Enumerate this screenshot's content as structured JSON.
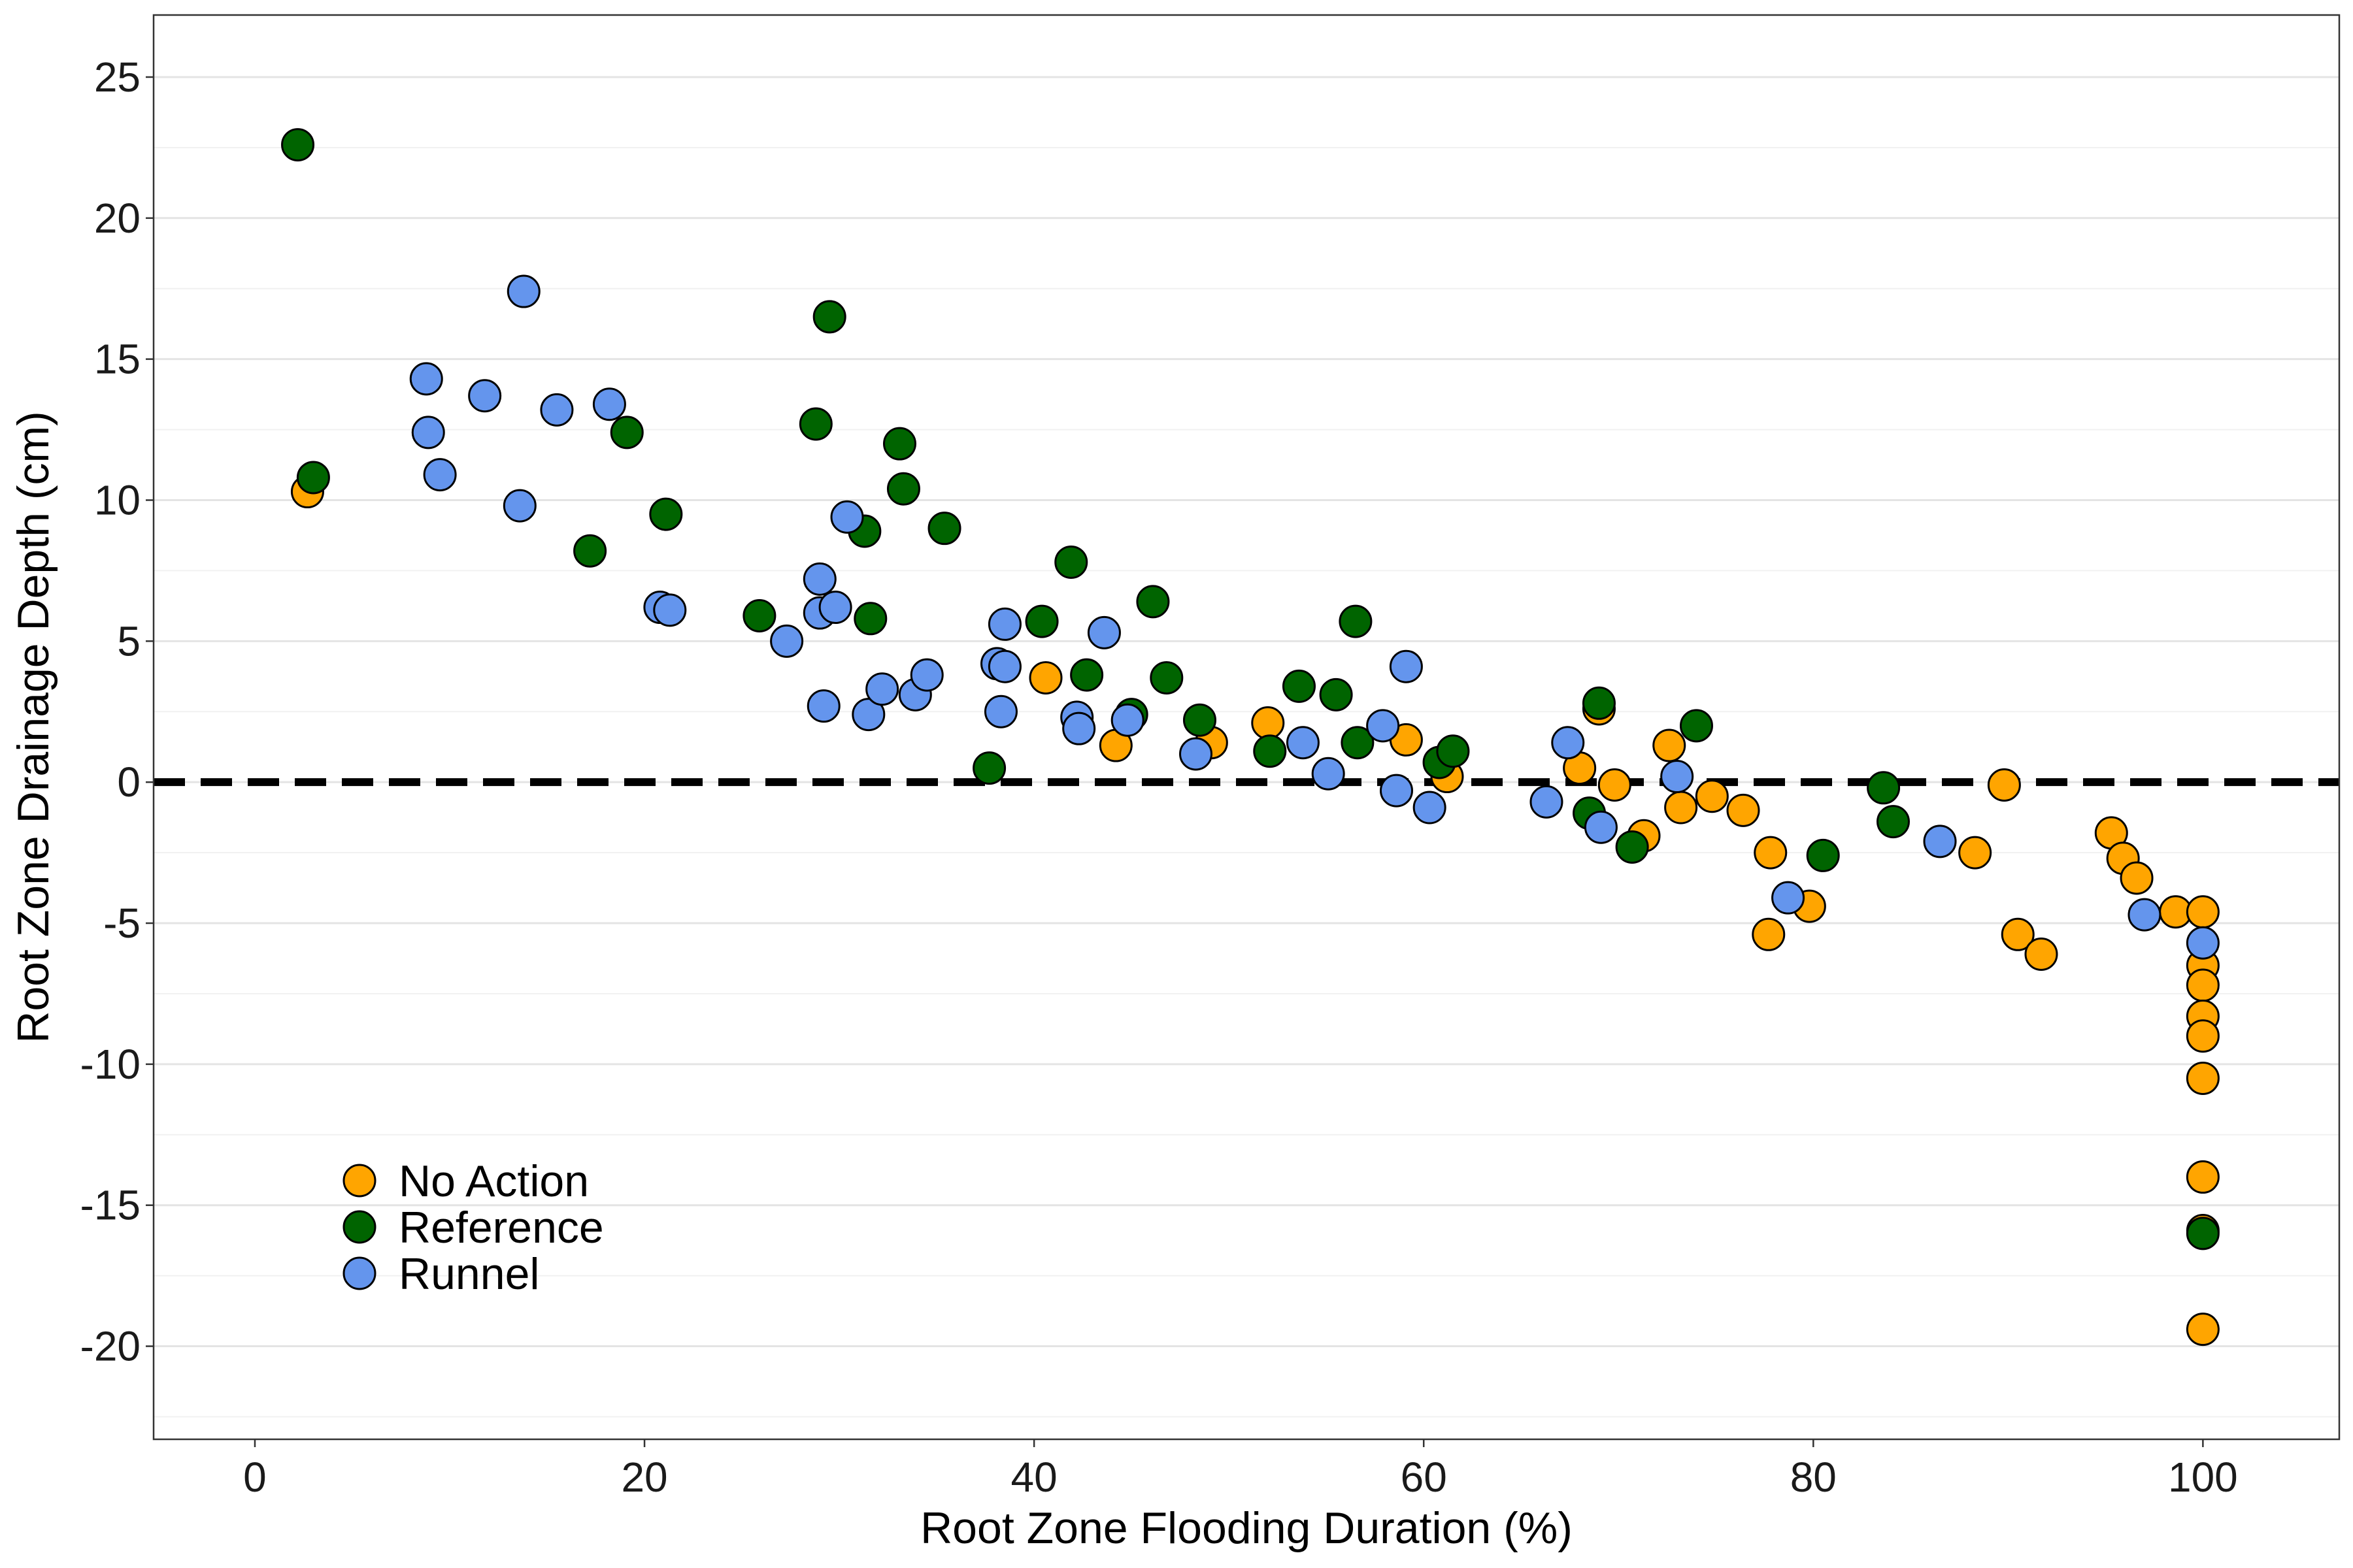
{
  "chart_data": {
    "type": "scatter",
    "xlabel": "Root Zone Flooding Duration (%)",
    "ylabel": "Root Zone Drainage Depth (cm)",
    "xlim": [
      -5.2,
      107
    ],
    "ylim": [
      -23.3,
      27.2
    ],
    "xticks": [
      0,
      20,
      40,
      60,
      80,
      100
    ],
    "yticks": [
      25,
      20,
      15,
      10,
      5,
      0,
      -5,
      -10,
      -15,
      -20
    ],
    "xtick_labels": [
      "0",
      "20",
      "40",
      "60",
      "80",
      "100"
    ],
    "ytick_labels": [
      "25",
      "20",
      "15",
      "10",
      "5",
      "0",
      "-5",
      "-10",
      "-15",
      "-20"
    ],
    "grid": "horizontal major and minor",
    "reference_line": {
      "y": 0,
      "style": "dashed"
    },
    "legend_position": "bottom-left",
    "series": [
      {
        "name": "No Action",
        "color": "#FFA500",
        "points": [
          [
            2.7,
            10.3
          ],
          [
            40.6,
            3.7
          ],
          [
            44.2,
            1.3
          ],
          [
            49.1,
            1.4
          ],
          [
            52.0,
            2.1
          ],
          [
            59.1,
            1.5
          ],
          [
            61.2,
            0.2
          ],
          [
            68.0,
            0.5
          ],
          [
            69.0,
            2.6
          ],
          [
            69.8,
            -0.1
          ],
          [
            71.3,
            -1.9
          ],
          [
            72.6,
            1.3
          ],
          [
            73.2,
            -0.9
          ],
          [
            74.8,
            -0.5
          ],
          [
            76.4,
            -1.0
          ],
          [
            77.8,
            -2.5
          ],
          [
            77.7,
            -5.4
          ],
          [
            79.8,
            -4.4
          ],
          [
            88.3,
            -2.5
          ],
          [
            89.8,
            -0.1
          ],
          [
            90.5,
            -5.4
          ],
          [
            91.7,
            -6.1
          ],
          [
            95.3,
            -1.8
          ],
          [
            95.9,
            -2.7
          ],
          [
            96.6,
            -3.4
          ],
          [
            98.6,
            -4.6
          ],
          [
            100,
            -4.6
          ],
          [
            100,
            -6.5
          ],
          [
            100,
            -7.2
          ],
          [
            100,
            -8.3
          ],
          [
            100,
            -9.0
          ],
          [
            100,
            -10.5
          ],
          [
            100,
            -14.0
          ],
          [
            100,
            -15.9
          ],
          [
            100,
            -19.4
          ]
        ]
      },
      {
        "name": "Reference",
        "color": "#006400",
        "points": [
          [
            2.2,
            22.6
          ],
          [
            3.0,
            10.8
          ],
          [
            17.2,
            8.2
          ],
          [
            19.1,
            12.4
          ],
          [
            21.1,
            9.5
          ],
          [
            25.9,
            5.9
          ],
          [
            28.8,
            12.7
          ],
          [
            29.5,
            16.5
          ],
          [
            31.3,
            8.9
          ],
          [
            31.6,
            5.8
          ],
          [
            33.1,
            12.0
          ],
          [
            33.3,
            10.4
          ],
          [
            35.4,
            9.0
          ],
          [
            37.7,
            0.5
          ],
          [
            40.4,
            5.7
          ],
          [
            41.9,
            7.8
          ],
          [
            42.7,
            3.8
          ],
          [
            45.0,
            2.4
          ],
          [
            46.1,
            6.4
          ],
          [
            46.8,
            3.7
          ],
          [
            48.5,
            2.2
          ],
          [
            52.1,
            1.1
          ],
          [
            53.6,
            3.4
          ],
          [
            55.5,
            3.1
          ],
          [
            56.5,
            5.7
          ],
          [
            56.6,
            1.4
          ],
          [
            60.8,
            0.7
          ],
          [
            61.5,
            1.1
          ],
          [
            68.5,
            -1.1
          ],
          [
            69.0,
            2.8
          ],
          [
            70.7,
            -2.3
          ],
          [
            74.0,
            2.0
          ],
          [
            80.5,
            -2.6
          ],
          [
            83.6,
            -0.2
          ],
          [
            84.1,
            -1.4
          ],
          [
            100,
            -16.0
          ]
        ]
      },
      {
        "name": "Runnel",
        "color": "#6495ED",
        "points": [
          [
            8.8,
            14.3
          ],
          [
            8.9,
            12.4
          ],
          [
            9.5,
            10.9
          ],
          [
            11.8,
            13.7
          ],
          [
            13.6,
            9.8
          ],
          [
            13.8,
            17.4
          ],
          [
            15.5,
            13.2
          ],
          [
            18.2,
            13.4
          ],
          [
            20.8,
            6.2
          ],
          [
            21.3,
            6.1
          ],
          [
            27.3,
            5.0
          ],
          [
            29.0,
            6.0
          ],
          [
            29.0,
            7.2
          ],
          [
            29.2,
            2.7
          ],
          [
            29.8,
            6.2
          ],
          [
            30.4,
            9.4
          ],
          [
            31.5,
            2.4
          ],
          [
            32.2,
            3.3
          ],
          [
            33.9,
            3.1
          ],
          [
            34.5,
            3.8
          ],
          [
            38.1,
            4.2
          ],
          [
            38.5,
            4.1
          ],
          [
            38.3,
            2.5
          ],
          [
            38.5,
            5.6
          ],
          [
            42.2,
            2.3
          ],
          [
            42.3,
            1.9
          ],
          [
            43.6,
            5.3
          ],
          [
            44.8,
            2.2
          ],
          [
            48.3,
            1.0
          ],
          [
            53.8,
            1.4
          ],
          [
            55.1,
            0.3
          ],
          [
            57.9,
            2.0
          ],
          [
            58.6,
            -0.3
          ],
          [
            59.1,
            4.1
          ],
          [
            60.3,
            -0.9
          ],
          [
            66.3,
            -0.7
          ],
          [
            67.4,
            1.4
          ],
          [
            69.1,
            -1.6
          ],
          [
            73.0,
            0.2
          ],
          [
            78.7,
            -4.1
          ],
          [
            86.5,
            -2.1
          ],
          [
            97.0,
            -4.7
          ],
          [
            100,
            -5.7
          ]
        ]
      }
    ]
  }
}
